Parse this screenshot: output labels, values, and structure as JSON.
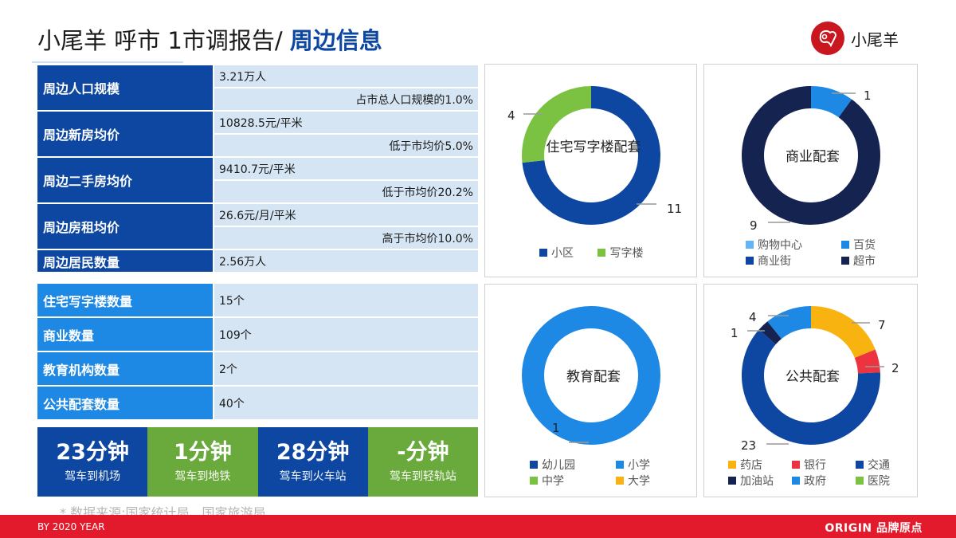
{
  "header": {
    "title_prefix": "小尾羊  呼市  1市调报告/ ",
    "title_highlight": "周边信息",
    "logo_text": "小尾羊"
  },
  "table_main": [
    {
      "label": "周边人口规模",
      "value": "3.21万人",
      "note": "占市总人口规模的1.0%"
    },
    {
      "label": "周边新房均价",
      "value": "10828.5元/平米",
      "note": "低于市均价5.0%"
    },
    {
      "label": "周边二手房均价",
      "value": "9410.7元/平米",
      "note": "低于市均价20.2%"
    },
    {
      "label": "周边房租均价",
      "value": "26.6元/月/平米",
      "note": "高于市均价10.0%"
    },
    {
      "label": "周边居民数量",
      "value": "2.56万人"
    }
  ],
  "table_counts": [
    {
      "label": "住宅写字楼数量",
      "value": "15个"
    },
    {
      "label": "商业数量",
      "value": "109个"
    },
    {
      "label": "教育机构数量",
      "value": "2个"
    },
    {
      "label": "公共配套数量",
      "value": "40个"
    }
  ],
  "transport": [
    {
      "time": "23分钟",
      "desc": "驾车到机场",
      "color": "blue"
    },
    {
      "time": "1分钟",
      "desc": "驾车到地铁",
      "color": "green"
    },
    {
      "time": "28分钟",
      "desc": "驾车到火车站",
      "color": "blue"
    },
    {
      "time": "-分钟",
      "desc": "驾车到轻轨站",
      "color": "green"
    }
  ],
  "source_note": "* 数据来源:国家统计局、国家旅游局",
  "footer": {
    "left": "BY 2020 YEAR",
    "right": "ORIGIN 品牌原点"
  },
  "colors": {
    "dark_blue": "#0d47a1",
    "light_blue": "#1e88e5",
    "green": "#6aaa3c",
    "lime": "#7cc242",
    "navy": "#14234f",
    "orange": "#f9b311",
    "red": "#ee3340",
    "sky": "#64b5f6",
    "footer_red": "#e31a2b"
  },
  "chart_data": [
    {
      "type": "pie",
      "variant": "donut",
      "title": "住宅写字楼配套",
      "categories": [
        "小区",
        "写字楼"
      ],
      "values": [
        11,
        4
      ],
      "colors": [
        "#0d47a1",
        "#7cc242"
      ],
      "data_labels": [
        "11",
        "4"
      ],
      "legend_position": "bottom"
    },
    {
      "type": "pie",
      "variant": "donut",
      "title": "商业配套",
      "categories": [
        "购物中心",
        "百货",
        "商业街",
        "超市"
      ],
      "values": [
        0,
        1,
        0,
        9
      ],
      "colors": [
        "#64b5f6",
        "#1e88e5",
        "#0d47a1",
        "#14234f"
      ],
      "data_labels": [
        "1",
        "9"
      ],
      "legend_position": "bottom"
    },
    {
      "type": "pie",
      "variant": "donut",
      "title": "教育配套",
      "categories": [
        "幼儿园",
        "小学",
        "中学",
        "大学"
      ],
      "values": [
        0,
        1,
        0,
        0
      ],
      "colors": [
        "#0d47a1",
        "#1e88e5",
        "#7cc242",
        "#f9b311"
      ],
      "data_labels": [
        "1"
      ],
      "legend_position": "bottom"
    },
    {
      "type": "pie",
      "variant": "donut",
      "title": "公共配套",
      "categories": [
        "药店",
        "银行",
        "交通",
        "加油站",
        "政府",
        "医院"
      ],
      "values": [
        7,
        2,
        23,
        1,
        4,
        0
      ],
      "colors": [
        "#f9b311",
        "#ee3340",
        "#0d47a1",
        "#14234f",
        "#1e88e5",
        "#7cc242"
      ],
      "data_labels": [
        "7",
        "2",
        "23",
        "1",
        "4"
      ],
      "legend_position": "bottom"
    }
  ]
}
